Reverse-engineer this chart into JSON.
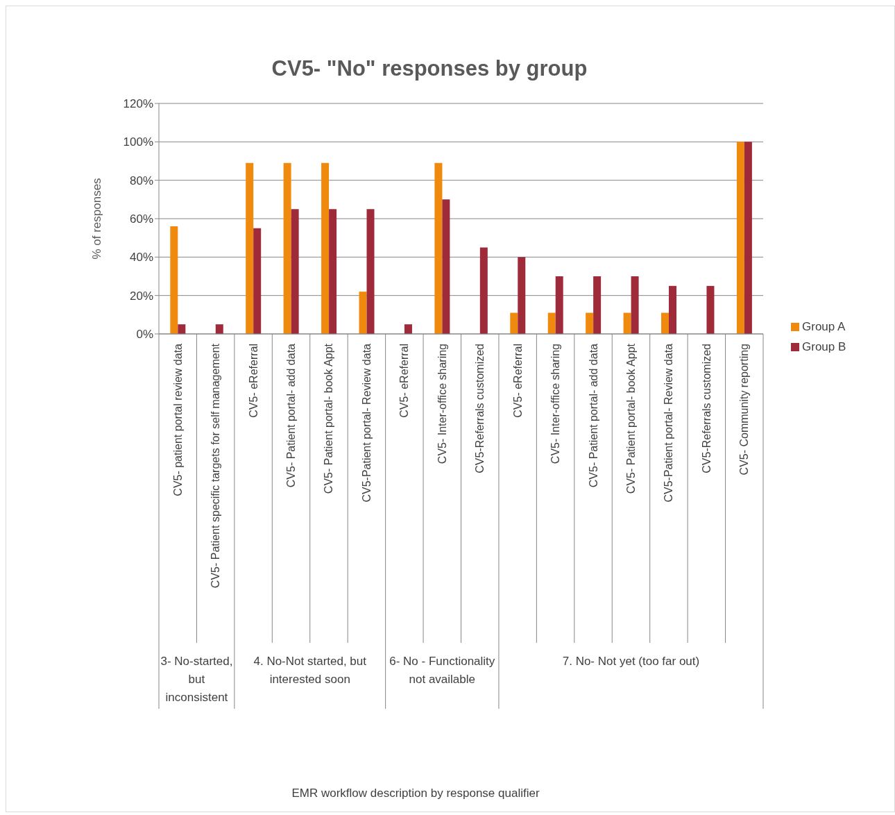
{
  "chart_data": {
    "type": "bar",
    "title": "CV5- \"No\" responses by group",
    "ylabel": "% of responses",
    "categories": [
      "CV5- patient portal review data",
      "CV5- Patient specific targets for self management",
      "CV5- eReferral",
      "CV5- Patient portal- add data",
      "CV5- Patient portal- book Appt",
      "CV5-Patient portal- Review data",
      "CV5- eReferral",
      "CV5- Inter-office sharing",
      "CV5-Referrals customized",
      "CV5- eReferral",
      "CV5- Inter-office sharing",
      "CV5- Patient portal- add data",
      "CV5- Patient portal- book Appt",
      "CV5-Patient portal- Review data",
      "CV5-Referrals customized",
      "CV5- Community reporting"
    ],
    "series": [
      {
        "name": "Group A",
        "color": "#f08a0e",
        "values": [
          56,
          null,
          89,
          89,
          89,
          22,
          null,
          89,
          null,
          11,
          11,
          11,
          11,
          11,
          null,
          100
        ]
      },
      {
        "name": "Group B",
        "color": "#9e2a3a",
        "values": [
          5,
          5,
          55,
          65,
          65,
          65,
          5,
          70,
          45,
          40,
          30,
          30,
          30,
          25,
          25,
          100
        ]
      }
    ],
    "ylim": [
      0,
      120
    ],
    "yticks": [
      {
        "value": 0,
        "label": "0%"
      },
      {
        "value": 20,
        "label": "20%"
      },
      {
        "value": 40,
        "label": "40%"
      },
      {
        "value": 60,
        "label": "60%"
      },
      {
        "value": 80,
        "label": "80%"
      },
      {
        "value": 100,
        "label": "100%"
      },
      {
        "value": 120,
        "label": "120%"
      }
    ],
    "annotations": [
      "3- No-started, but inconsistent",
      "4. No-Not started, but interested soon",
      "6- No - Functionality not available",
      "7. No- Not yet (too far out)",
      "EMR workflow description by response qualifier"
    ],
    "grid": "y",
    "legend": "right"
  }
}
